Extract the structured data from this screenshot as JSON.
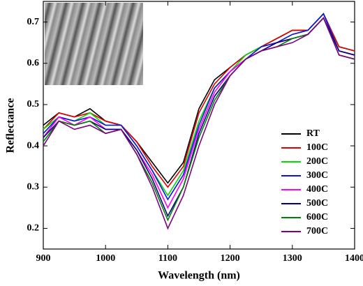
{
  "chart_data": {
    "type": "line",
    "x_label": "Wavelength (nm)",
    "y_label": "Reflectance",
    "x": [
      900,
      925,
      950,
      975,
      1000,
      1025,
      1050,
      1075,
      1100,
      1125,
      1150,
      1175,
      1200,
      1225,
      1250,
      1275,
      1300,
      1325,
      1350,
      1375,
      1400
    ],
    "series": [
      {
        "name": "RT",
        "color": "#000000",
        "values": [
          0.45,
          0.48,
          0.47,
          0.49,
          0.46,
          0.45,
          0.41,
          0.36,
          0.31,
          0.36,
          0.49,
          0.56,
          0.59,
          0.62,
          0.64,
          0.66,
          0.68,
          0.68,
          0.72,
          0.64,
          0.63
        ]
      },
      {
        "name": "100C",
        "color": "#e00000",
        "values": [
          0.44,
          0.48,
          0.47,
          0.48,
          0.46,
          0.45,
          0.41,
          0.35,
          0.3,
          0.35,
          0.48,
          0.55,
          0.59,
          0.62,
          0.64,
          0.66,
          0.68,
          0.68,
          0.72,
          0.64,
          0.63
        ]
      },
      {
        "name": "200C",
        "color": "#00e000",
        "values": [
          0.44,
          0.47,
          0.46,
          0.48,
          0.45,
          0.45,
          0.4,
          0.34,
          0.28,
          0.34,
          0.46,
          0.54,
          0.58,
          0.62,
          0.64,
          0.65,
          0.67,
          0.68,
          0.72,
          0.63,
          0.62
        ]
      },
      {
        "name": "300C",
        "color": "#1010e0",
        "values": [
          0.43,
          0.47,
          0.46,
          0.47,
          0.45,
          0.45,
          0.4,
          0.34,
          0.27,
          0.33,
          0.45,
          0.54,
          0.58,
          0.61,
          0.64,
          0.65,
          0.67,
          0.68,
          0.72,
          0.63,
          0.62
        ]
      },
      {
        "name": "400C",
        "color": "#ff00ff",
        "values": [
          0.42,
          0.47,
          0.45,
          0.47,
          0.44,
          0.44,
          0.39,
          0.33,
          0.25,
          0.32,
          0.44,
          0.53,
          0.58,
          0.61,
          0.63,
          0.65,
          0.66,
          0.67,
          0.71,
          0.63,
          0.62
        ]
      },
      {
        "name": "500C",
        "color": "#000080",
        "values": [
          0.42,
          0.46,
          0.45,
          0.46,
          0.44,
          0.44,
          0.39,
          0.32,
          0.23,
          0.3,
          0.43,
          0.52,
          0.57,
          0.61,
          0.63,
          0.65,
          0.66,
          0.67,
          0.71,
          0.63,
          0.62
        ]
      },
      {
        "name": "600C",
        "color": "#008000",
        "values": [
          0.41,
          0.46,
          0.45,
          0.46,
          0.43,
          0.44,
          0.38,
          0.31,
          0.22,
          0.3,
          0.42,
          0.51,
          0.57,
          0.61,
          0.63,
          0.64,
          0.66,
          0.67,
          0.71,
          0.62,
          0.61
        ]
      },
      {
        "name": "700C",
        "color": "#800080",
        "values": [
          0.4,
          0.46,
          0.44,
          0.45,
          0.43,
          0.44,
          0.38,
          0.3,
          0.2,
          0.28,
          0.4,
          0.5,
          0.57,
          0.61,
          0.63,
          0.64,
          0.65,
          0.67,
          0.71,
          0.62,
          0.61
        ]
      }
    ],
    "xlim": [
      900,
      1400
    ],
    "xticks": [
      900,
      1000,
      1100,
      1200,
      1300,
      1400
    ],
    "ylim": [
      0.15,
      0.75
    ],
    "yticks": [
      0.2,
      0.3,
      0.4,
      0.5,
      0.6,
      0.7
    ],
    "legend": "lower-right"
  }
}
